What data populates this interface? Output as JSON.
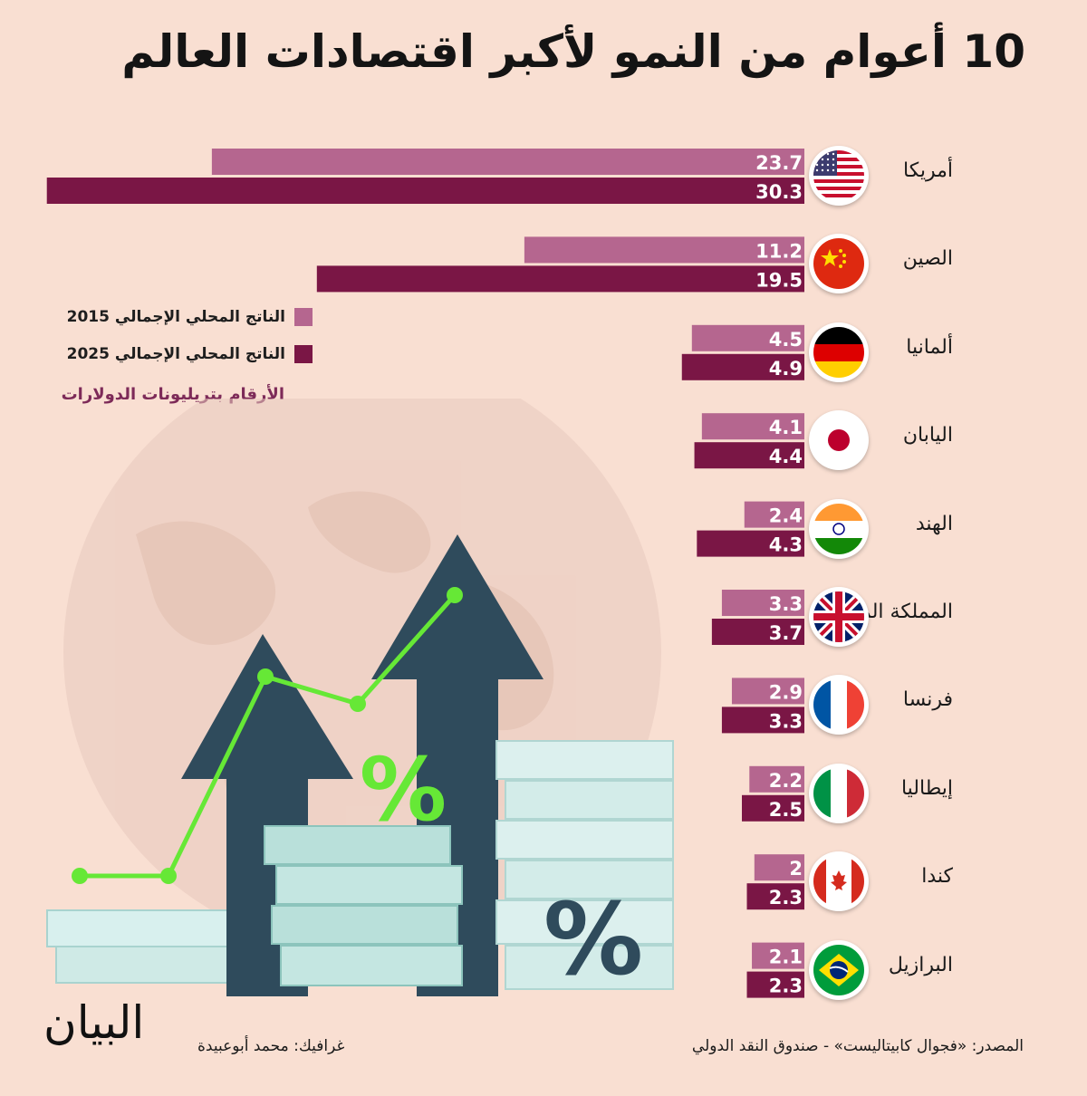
{
  "title": "10 أعوام من النمو لأكبر اقتصادات العالم",
  "legend": {
    "item_2015": "الناتج المحلي الإجمالي 2015",
    "item_2025": "الناتج المحلي الإجمالي 2025"
  },
  "units_note": "الأرقام بتريليونات الدولارات",
  "source": "المصدر: «فجوال كابيتاليست» - صندوق النقد الدولي",
  "credit": "غرافيك: محمد أبوعبيدة",
  "logo_text": "البيان",
  "colors": {
    "background": "#f9dfd2",
    "series_2015": "#b5668f",
    "series_2025": "#7a1645",
    "arrows": "#2f4b5c",
    "trend_line": "#66e836",
    "coins": "#cfeae6"
  },
  "chart_data": {
    "type": "bar",
    "orientation": "horizontal",
    "categories": [
      "أمريكا",
      "الصين",
      "ألمانيا",
      "اليابان",
      "الهند",
      "المملكة المتحدة",
      "فرنسا",
      "إيطاليا",
      "كندا",
      "البرازيل"
    ],
    "flags": [
      "us-flag-icon",
      "china-flag-icon",
      "germany-flag-icon",
      "japan-flag-icon",
      "india-flag-icon",
      "uk-flag-icon",
      "france-flag-icon",
      "italy-flag-icon",
      "canada-flag-icon",
      "brazil-flag-icon"
    ],
    "series": [
      {
        "name": "الناتج المحلي الإجمالي 2015",
        "values": [
          23.7,
          11.2,
          4.5,
          4.1,
          2.4,
          3.3,
          2.9,
          2.2,
          2,
          2.1
        ]
      },
      {
        "name": "الناتج المحلي الإجمالي 2025",
        "values": [
          30.3,
          19.5,
          4.9,
          4.4,
          4.3,
          3.7,
          3.3,
          2.5,
          2.3,
          2.3
        ]
      }
    ],
    "value_labels": [
      [
        "23.7",
        "11.2",
        "4.5",
        "4.1",
        "2.4",
        "3.3",
        "2.9",
        "2.2",
        "2",
        "2.1"
      ],
      [
        "30.3",
        "19.5",
        "4.9",
        "4.4",
        "4.3",
        "3.7",
        "3.3",
        "2.5",
        "2.3",
        "2.3"
      ]
    ],
    "unit": "trillion USD",
    "bars_grow": "right-to-left",
    "legend_position": "left",
    "grid": false
  },
  "illustration": {
    "percent_symbol": "%",
    "trend_points": [
      1,
      1,
      3.2,
      2.9,
      4.1
    ]
  }
}
